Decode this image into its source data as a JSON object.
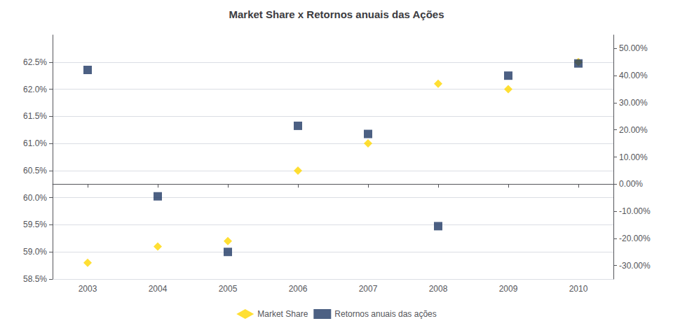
{
  "chart_data": {
    "type": "scatter",
    "title": "Market Share x Retornos anuais das Ações",
    "x": [
      2003,
      2004,
      2005,
      2006,
      2007,
      2008,
      2009,
      2010
    ],
    "xlim": [
      2002.5,
      2010.5
    ],
    "xticks": [
      2003,
      2004,
      2005,
      2006,
      2007,
      2008,
      2009,
      2010
    ],
    "ylim": [
      0.585,
      0.63
    ],
    "yticks": [
      {
        "value": 0.585,
        "label": "58.5%"
      },
      {
        "value": 0.59,
        "label": "59.0%"
      },
      {
        "value": 0.595,
        "label": "59.5%"
      },
      {
        "value": 0.6,
        "label": "60.0%"
      },
      {
        "value": 0.605,
        "label": "60.5%"
      },
      {
        "value": 0.61,
        "label": "61.0%"
      },
      {
        "value": 0.615,
        "label": "61.5%"
      },
      {
        "value": 0.62,
        "label": "62.0%"
      },
      {
        "value": 0.625,
        "label": "62.5%"
      }
    ],
    "y2lim": [
      -0.35,
      0.55
    ],
    "y2ticks": [
      {
        "value": -0.3,
        "label": "-30.00%"
      },
      {
        "value": -0.2,
        "label": "-20.00%"
      },
      {
        "value": -0.1,
        "label": "-10.00%"
      },
      {
        "value": 0.0,
        "label": "0.00%"
      },
      {
        "value": 0.1,
        "label": "10.00%"
      },
      {
        "value": 0.2,
        "label": "20.00%"
      },
      {
        "value": 0.3,
        "label": "30.00%"
      },
      {
        "value": 0.4,
        "label": "40.00%"
      },
      {
        "value": 0.5,
        "label": "50.00%"
      }
    ],
    "grid": true,
    "legend": "bottom",
    "series": [
      {
        "name": "Market Share",
        "color": "#FFD700",
        "marker": "diamond",
        "values": [
          0.588,
          0.591,
          0.592,
          0.605,
          0.61,
          0.621,
          0.62,
          0.625
        ]
      },
      {
        "name": "Retornos anuais das ações",
        "color": "#1F3864",
        "marker": "square",
        "axis": "y2",
        "values": [
          0.421,
          -0.045,
          -0.25,
          0.215,
          0.185,
          -0.155,
          0.4,
          0.445
        ]
      }
    ]
  }
}
